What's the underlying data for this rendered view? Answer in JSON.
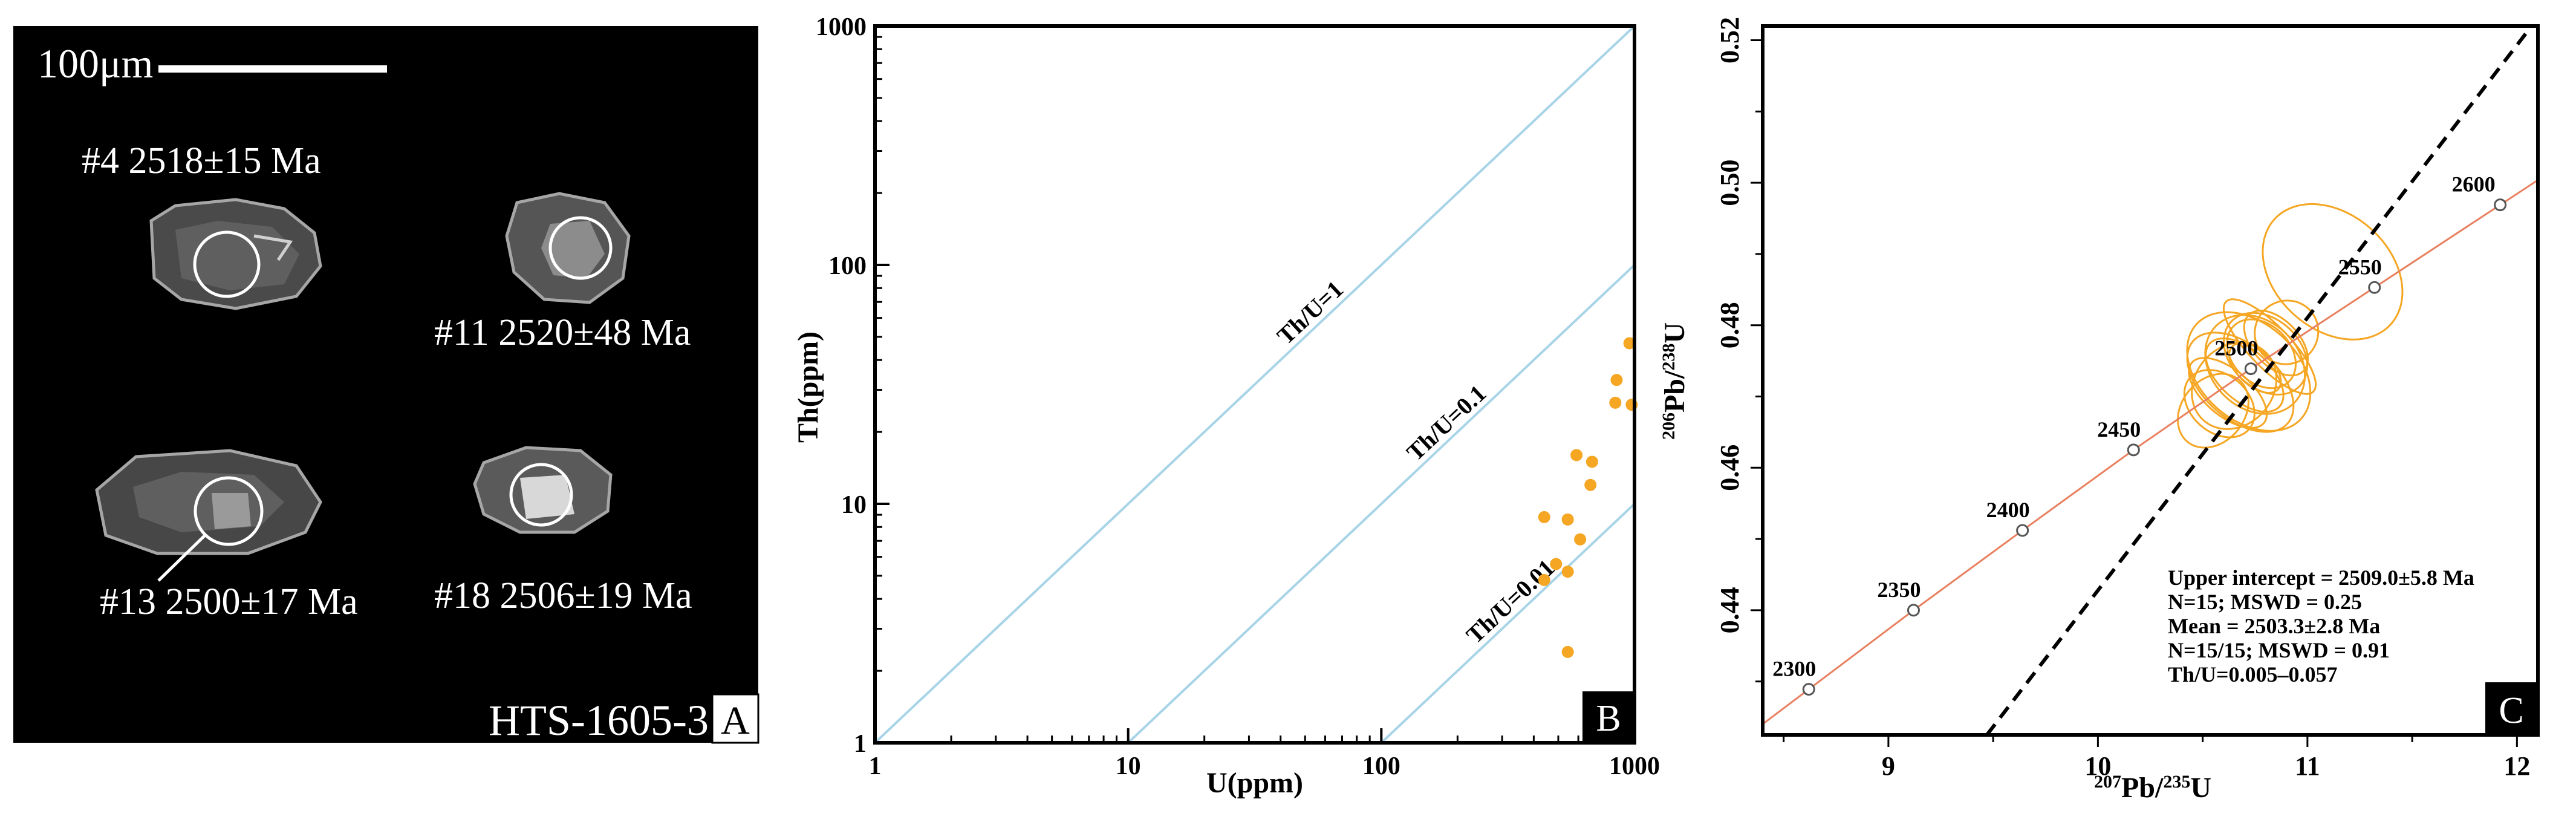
{
  "panel_a": {
    "scale_label": "100μm",
    "spots": [
      {
        "label": "#4 2518±15 Ma"
      },
      {
        "label": "#11 2520±48 Ma"
      },
      {
        "label": "#13 2500±17 Ma"
      },
      {
        "label": "#18 2506±19 Ma"
      }
    ],
    "sample_id": "HTS-1605-3",
    "panel_letter": "A",
    "background_color": "#000000"
  },
  "chart_data": [
    {
      "type": "scatter",
      "panel_letter": "B",
      "xlabel": "U(ppm)",
      "ylabel": "Th(ppm)",
      "xscale": "log",
      "yscale": "log",
      "xlim": [
        1,
        1000
      ],
      "ylim": [
        1,
        1000
      ],
      "xticks": [
        {
          "v": 1,
          "label": "1"
        },
        {
          "v": 10,
          "label": "10"
        },
        {
          "v": 100,
          "label": "100"
        },
        {
          "v": 1000,
          "label": "1000"
        }
      ],
      "yticks": [
        {
          "v": 1,
          "label": "1"
        },
        {
          "v": 10,
          "label": "10"
        },
        {
          "v": 100,
          "label": "100"
        },
        {
          "v": 1000,
          "label": "1000"
        }
      ],
      "reference_lines": [
        {
          "label": "Th/U=1",
          "ratio": 1
        },
        {
          "label": "Th/U=0.1",
          "ratio": 0.1
        },
        {
          "label": "Th/U=0.01",
          "ratio": 0.01
        }
      ],
      "reference_line_color": "#a8d4e8",
      "point_color": "#f5a623",
      "points": [
        {
          "u": 955,
          "th": 47
        },
        {
          "u": 850,
          "th": 33
        },
        {
          "u": 840,
          "th": 26.5
        },
        {
          "u": 975,
          "th": 26
        },
        {
          "u": 590,
          "th": 16
        },
        {
          "u": 680,
          "th": 15
        },
        {
          "u": 670,
          "th": 12
        },
        {
          "u": 440,
          "th": 8.8
        },
        {
          "u": 545,
          "th": 8.6
        },
        {
          "u": 610,
          "th": 7.1
        },
        {
          "u": 490,
          "th": 5.6
        },
        {
          "u": 545,
          "th": 5.2
        },
        {
          "u": 440,
          "th": 4.8
        },
        {
          "u": 545,
          "th": 2.4
        }
      ]
    },
    {
      "type": "concordia",
      "panel_letter": "C",
      "xlabel_base": "Pb/",
      "xlabel_sup1": "207",
      "xlabel_sup2": "235",
      "xlabel_tail": "U",
      "ylabel_base": "Pb/",
      "ylabel_sup1": "206",
      "ylabel_sup2": "238",
      "ylabel_tail": "U",
      "xlim": [
        8.4,
        12.1
      ],
      "ylim": [
        0.4225,
        0.522
      ],
      "xticks": [
        {
          "v": 9,
          "label": "9"
        },
        {
          "v": 10,
          "label": "10"
        },
        {
          "v": 11,
          "label": "11"
        },
        {
          "v": 12,
          "label": "12"
        }
      ],
      "yticks": [
        {
          "v": 0.44,
          "label": "0.44"
        },
        {
          "v": 0.46,
          "label": "0.46"
        },
        {
          "v": 0.48,
          "label": "0.48"
        },
        {
          "v": 0.5,
          "label": "0.50"
        },
        {
          "v": 0.52,
          "label": "0.52"
        }
      ],
      "concordia_color": "#e8805f",
      "ellipse_color": "#f5a623",
      "age_markers": [
        {
          "age": "2300",
          "x": 8.62,
          "y": 0.4289
        },
        {
          "age": "2350",
          "x": 9.12,
          "y": 0.44
        },
        {
          "age": "2400",
          "x": 9.64,
          "y": 0.4512
        },
        {
          "age": "2450",
          "x": 10.17,
          "y": 0.4625
        },
        {
          "age": "2500",
          "x": 10.73,
          "y": 0.4739
        },
        {
          "age": "2550",
          "x": 11.32,
          "y": 0.4853
        },
        {
          "age": "2600",
          "x": 11.92,
          "y": 0.4969
        }
      ],
      "discordia": {
        "x1": 9.47,
        "y1": 0.4225,
        "x2": 12.07,
        "y2": 0.522
      },
      "ellipses": [
        {
          "cx": 10.72,
          "cy": 0.4735,
          "rx": 0.42,
          "ry": 0.045,
          "angle": 48
        },
        {
          "cx": 10.75,
          "cy": 0.4745,
          "rx": 0.38,
          "ry": 0.035,
          "angle": 46
        },
        {
          "cx": 10.8,
          "cy": 0.476,
          "rx": 0.3,
          "ry": 0.03,
          "angle": 47
        },
        {
          "cx": 10.68,
          "cy": 0.472,
          "rx": 0.32,
          "ry": 0.04,
          "angle": 49
        },
        {
          "cx": 10.78,
          "cy": 0.476,
          "rx": 0.25,
          "ry": 0.025,
          "angle": 45
        },
        {
          "cx": 10.7,
          "cy": 0.473,
          "rx": 0.22,
          "ry": 0.03,
          "angle": 48
        },
        {
          "cx": 10.85,
          "cy": 0.4775,
          "rx": 0.2,
          "ry": 0.025,
          "angle": 44
        },
        {
          "cx": 10.62,
          "cy": 0.4705,
          "rx": 0.2,
          "ry": 0.03,
          "angle": 50
        },
        {
          "cx": 10.75,
          "cy": 0.474,
          "rx": 0.15,
          "ry": 0.02,
          "angle": 47
        },
        {
          "cx": 10.9,
          "cy": 0.479,
          "rx": 0.28,
          "ry": 0.02,
          "angle": 46
        },
        {
          "cx": 10.58,
          "cy": 0.469,
          "rx": 0.25,
          "ry": 0.025,
          "angle": 49
        },
        {
          "cx": 11.12,
          "cy": 0.4875,
          "rx": 0.5,
          "ry": 0.05,
          "angle": 48
        },
        {
          "cx": 10.55,
          "cy": 0.468,
          "rx": 0.35,
          "ry": 0.02,
          "angle": 50
        },
        {
          "cx": 10.82,
          "cy": 0.477,
          "rx": 0.18,
          "ry": 0.04,
          "angle": 44
        },
        {
          "cx": 10.65,
          "cy": 0.4715,
          "rx": 0.4,
          "ry": 0.025,
          "angle": 49
        }
      ],
      "annotations": [
        "Upper intercept = 2509.0±5.8 Ma",
        "N=15; MSWD =  0.25",
        "Mean = 2503.3±2.8 Ma",
        "N=15/15; MSWD = 0.91",
        "Th/U=0.005–0.057"
      ]
    }
  ]
}
